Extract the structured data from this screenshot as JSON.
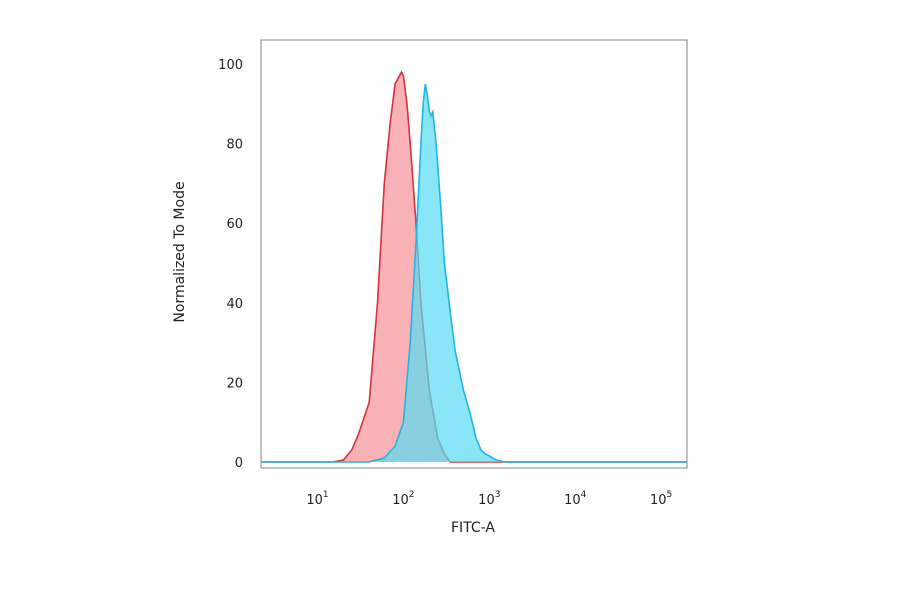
{
  "chart_data": {
    "type": "area",
    "title": "",
    "xlabel": "FITC-A",
    "ylabel": "Normalized To Mode",
    "x_scale": "log",
    "xlim": [
      2.2,
      200000
    ],
    "ylim": [
      0,
      100
    ],
    "y_ticks": [
      "0",
      "20",
      "40",
      "60",
      "80",
      "100"
    ],
    "x_ticks": [
      {
        "value": 10,
        "base": "10",
        "exp": "1"
      },
      {
        "value": 100,
        "base": "10",
        "exp": "2"
      },
      {
        "value": 1000,
        "base": "10",
        "exp": "3"
      },
      {
        "value": 10000,
        "base": "10",
        "exp": "4"
      },
      {
        "value": 100000,
        "base": "10",
        "exp": "5"
      }
    ],
    "grid": false,
    "series": [
      {
        "fill": "#f7a5a9",
        "stroke": "#d7323e",
        "x": [
          2.2,
          15,
          20,
          25,
          30,
          40,
          50,
          60,
          70,
          80,
          90,
          95,
          100,
          110,
          120,
          140,
          160,
          200,
          250,
          300,
          350,
          200000
        ],
        "values": [
          0,
          0,
          0.5,
          3,
          7,
          15,
          40,
          70,
          85,
          95,
          97,
          98,
          97,
          90,
          80,
          60,
          40,
          18,
          6,
          2,
          0,
          0
        ]
      },
      {
        "fill": "#57dbf3",
        "stroke": "#1fb6e4",
        "x": [
          2.2,
          40,
          60,
          80,
          100,
          120,
          140,
          160,
          170,
          180,
          190,
          200,
          210,
          220,
          240,
          270,
          300,
          350,
          400,
          500,
          600,
          700,
          800,
          900,
          1000,
          1200,
          1500,
          200000
        ],
        "values": [
          0,
          0,
          1,
          4,
          10,
          30,
          55,
          80,
          90,
          95,
          92,
          88,
          87,
          88,
          80,
          65,
          50,
          38,
          28,
          18,
          12,
          6,
          3,
          2,
          1.5,
          0.5,
          0,
          0
        ]
      }
    ]
  }
}
